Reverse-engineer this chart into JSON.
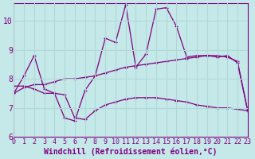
{
  "xlabel": "Windchill (Refroidissement éolien,°C)",
  "xlim": [
    0,
    23
  ],
  "ylim": [
    6,
    10.6
  ],
  "yticks": [
    6,
    7,
    8,
    9,
    10
  ],
  "xticks": [
    0,
    1,
    2,
    3,
    4,
    5,
    6,
    7,
    8,
    9,
    10,
    11,
    12,
    13,
    14,
    15,
    16,
    17,
    18,
    19,
    20,
    21,
    22,
    23
  ],
  "background_color": "#c5e8e8",
  "line_color": "#800080",
  "grid_color": "#b0d8d8",
  "top_y": [
    7.5,
    8.1,
    8.8,
    7.65,
    7.5,
    6.65,
    6.55,
    7.6,
    8.1,
    9.4,
    9.25,
    10.55,
    8.4,
    8.85,
    10.4,
    10.45,
    9.8,
    8.75,
    8.8,
    8.8,
    8.75,
    8.8,
    8.55,
    6.9
  ],
  "mid_y": [
    7.5,
    7.7,
    7.8,
    7.8,
    7.9,
    8.0,
    8.0,
    8.05,
    8.1,
    8.2,
    8.3,
    8.4,
    8.45,
    8.5,
    8.55,
    8.6,
    8.65,
    8.7,
    8.75,
    8.8,
    8.8,
    8.75,
    8.6,
    6.9
  ],
  "bot_y": [
    7.75,
    7.75,
    7.65,
    7.5,
    7.5,
    7.45,
    6.65,
    6.6,
    6.9,
    7.1,
    7.2,
    7.3,
    7.35,
    7.35,
    7.35,
    7.3,
    7.25,
    7.2,
    7.1,
    7.05,
    7.0,
    7.0,
    6.95,
    6.9
  ],
  "xlabel_fontsize": 7,
  "ytick_fontsize": 7,
  "xtick_fontsize": 6
}
